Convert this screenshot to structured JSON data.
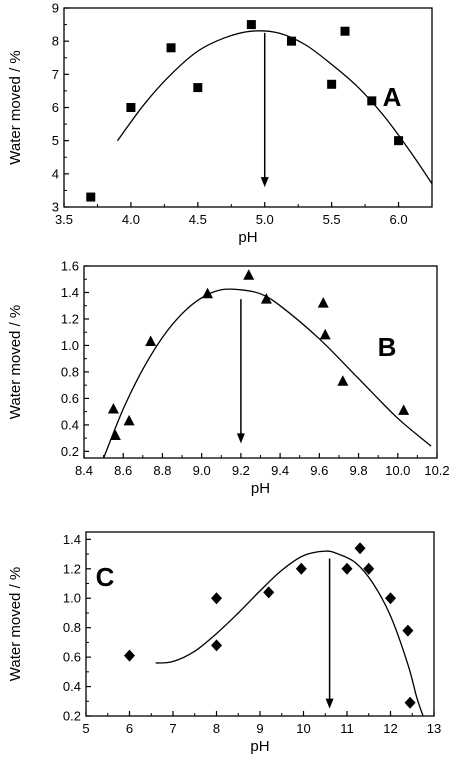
{
  "chart_data": [
    {
      "type": "scatter",
      "panel_label": "A",
      "xlabel": "pH",
      "ylabel": "Water moved / %",
      "xlim": [
        3.5,
        6.25
      ],
      "ylim": [
        3.0,
        9.0
      ],
      "xticks": [
        3.5,
        4.0,
        4.5,
        5.0,
        5.5,
        6.0
      ],
      "xtick_labels": [
        "3.5",
        "4.0",
        "4.5",
        "5.0",
        "5.5",
        "6.0"
      ],
      "yticks": [
        3,
        4,
        5,
        6,
        7,
        8,
        9
      ],
      "ytick_labels": [
        "3",
        "4",
        "5",
        "6",
        "7",
        "8",
        "9"
      ],
      "marker": "square",
      "points": {
        "x": [
          3.7,
          4.0,
          4.3,
          4.5,
          4.9,
          5.2,
          5.5,
          5.6,
          5.8,
          6.0
        ],
        "y": [
          3.3,
          6.0,
          7.8,
          6.6,
          8.5,
          8.0,
          6.7,
          8.3,
          6.2,
          5.0
        ]
      },
      "fit": {
        "x": [
          3.9,
          4.1,
          4.3,
          4.5,
          4.7,
          4.9,
          5.1,
          5.3,
          5.5,
          5.7,
          5.9,
          6.1,
          6.25
        ],
        "y": [
          5.0,
          6.1,
          7.0,
          7.7,
          8.1,
          8.3,
          8.25,
          7.9,
          7.3,
          6.6,
          5.7,
          4.6,
          3.7
        ]
      },
      "arrow": {
        "x": 5.0,
        "y_from": 8.25,
        "y_to": 3.6
      },
      "grid": false
    },
    {
      "type": "scatter",
      "panel_label": "B",
      "xlabel": "pH",
      "ylabel": "Water moved / %",
      "xlim": [
        8.4,
        10.2
      ],
      "ylim": [
        0.15,
        1.6
      ],
      "xticks": [
        8.4,
        8.6,
        8.8,
        9.0,
        9.2,
        9.4,
        9.6,
        9.8,
        10.0,
        10.2
      ],
      "xtick_labels": [
        "8.4",
        "8.6",
        "8.8",
        "9.0",
        "9.2",
        "9.4",
        "9.6",
        "9.8",
        "10.0",
        "10.2"
      ],
      "yticks": [
        0.2,
        0.4,
        0.6,
        0.8,
        1.0,
        1.2,
        1.4,
        1.6
      ],
      "ytick_labels": [
        "0.2",
        "0.4",
        "0.6",
        "0.8",
        "1.0",
        "1.2",
        "1.4",
        "1.6"
      ],
      "marker": "triangle",
      "points": {
        "x": [
          8.55,
          8.56,
          8.63,
          8.74,
          9.03,
          9.24,
          9.33,
          9.62,
          9.63,
          9.72,
          10.03
        ],
        "y": [
          0.52,
          0.32,
          0.43,
          1.03,
          1.39,
          1.53,
          1.35,
          1.32,
          1.08,
          0.73,
          0.51
        ]
      },
      "fit": {
        "x": [
          8.5,
          8.6,
          8.7,
          8.8,
          8.9,
          9.0,
          9.1,
          9.2,
          9.3,
          9.4,
          9.6,
          9.8,
          10.0,
          10.17
        ],
        "y": [
          0.15,
          0.52,
          0.82,
          1.06,
          1.24,
          1.36,
          1.42,
          1.42,
          1.39,
          1.3,
          1.05,
          0.75,
          0.45,
          0.24
        ]
      },
      "arrow": {
        "x": 9.2,
        "y_from": 1.35,
        "y_to": 0.26
      },
      "grid": false
    },
    {
      "type": "scatter",
      "panel_label": "C",
      "xlabel": "pH",
      "ylabel": "Water moved / %",
      "xlim": [
        5,
        13
      ],
      "ylim": [
        0.2,
        1.45
      ],
      "xticks": [
        5,
        6,
        7,
        8,
        9,
        10,
        11,
        12,
        13
      ],
      "xtick_labels": [
        "5",
        "6",
        "7",
        "8",
        "9",
        "10",
        "11",
        "12",
        "13"
      ],
      "yticks": [
        0.2,
        0.4,
        0.6,
        0.8,
        1.0,
        1.2,
        1.4
      ],
      "ytick_labels": [
        "0.2",
        "0.4",
        "0.6",
        "0.8",
        "1.0",
        "1.2",
        "1.4"
      ],
      "marker": "diamond",
      "points": {
        "x": [
          6.0,
          8.0,
          8.0,
          9.2,
          9.95,
          11.0,
          11.3,
          11.5,
          12.0,
          12.4,
          12.45
        ],
        "y": [
          0.61,
          1.0,
          0.68,
          1.04,
          1.2,
          1.2,
          1.34,
          1.2,
          1.0,
          0.78,
          0.29
        ]
      },
      "fit": {
        "x": [
          6.6,
          7.0,
          7.5,
          8.0,
          8.5,
          9.0,
          9.5,
          10.0,
          10.5,
          10.8,
          11.2,
          11.6,
          12.0,
          12.4,
          12.6,
          12.75
        ],
        "y": [
          0.56,
          0.57,
          0.64,
          0.76,
          0.9,
          1.05,
          1.19,
          1.29,
          1.32,
          1.3,
          1.24,
          1.1,
          0.88,
          0.55,
          0.33,
          0.2
        ]
      },
      "arrow": {
        "x": 10.6,
        "y_from": 1.27,
        "y_to": 0.25
      },
      "grid": false
    }
  ]
}
